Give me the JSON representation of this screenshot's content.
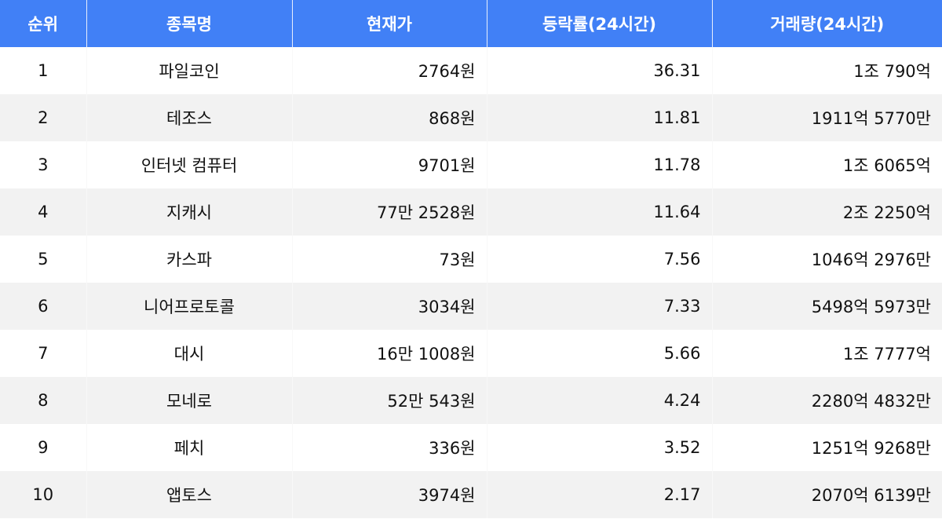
{
  "header": [
    "순위",
    "종목명",
    "현재가",
    "등락률(24시간)",
    "거래량(24시간)"
  ],
  "rows": [
    [
      "1",
      "파일코인",
      "2764원",
      "36.31",
      "1조 790억"
    ],
    [
      "2",
      "테조스",
      "868원",
      "11.81",
      "1911억 5770만"
    ],
    [
      "3",
      "인터넷 컴퓨터",
      "9701원",
      "11.78",
      "1조 6065억"
    ],
    [
      "4",
      "지캐시",
      "77만 2528원",
      "11.64",
      "2조 2250억"
    ],
    [
      "5",
      "카스파",
      "73원",
      "7.56",
      "1046억 2976만"
    ],
    [
      "6",
      "니어프로토콜",
      "3034원",
      "7.33",
      "5498억 5973만"
    ],
    [
      "7",
      "대시",
      "16만 1008원",
      "5.66",
      "1조 7777억"
    ],
    [
      "8",
      "모네로",
      "52만 543원",
      "4.24",
      "2280억 4832만"
    ],
    [
      "9",
      "페치",
      "336원",
      "3.52",
      "1251억 9268만"
    ],
    [
      "10",
      "앱토스",
      "3974원",
      "2.17",
      "2070억 6139만"
    ]
  ],
  "colors": {
    "header_bg": "#4180f6",
    "row_alt": "#f2f2f2"
  }
}
